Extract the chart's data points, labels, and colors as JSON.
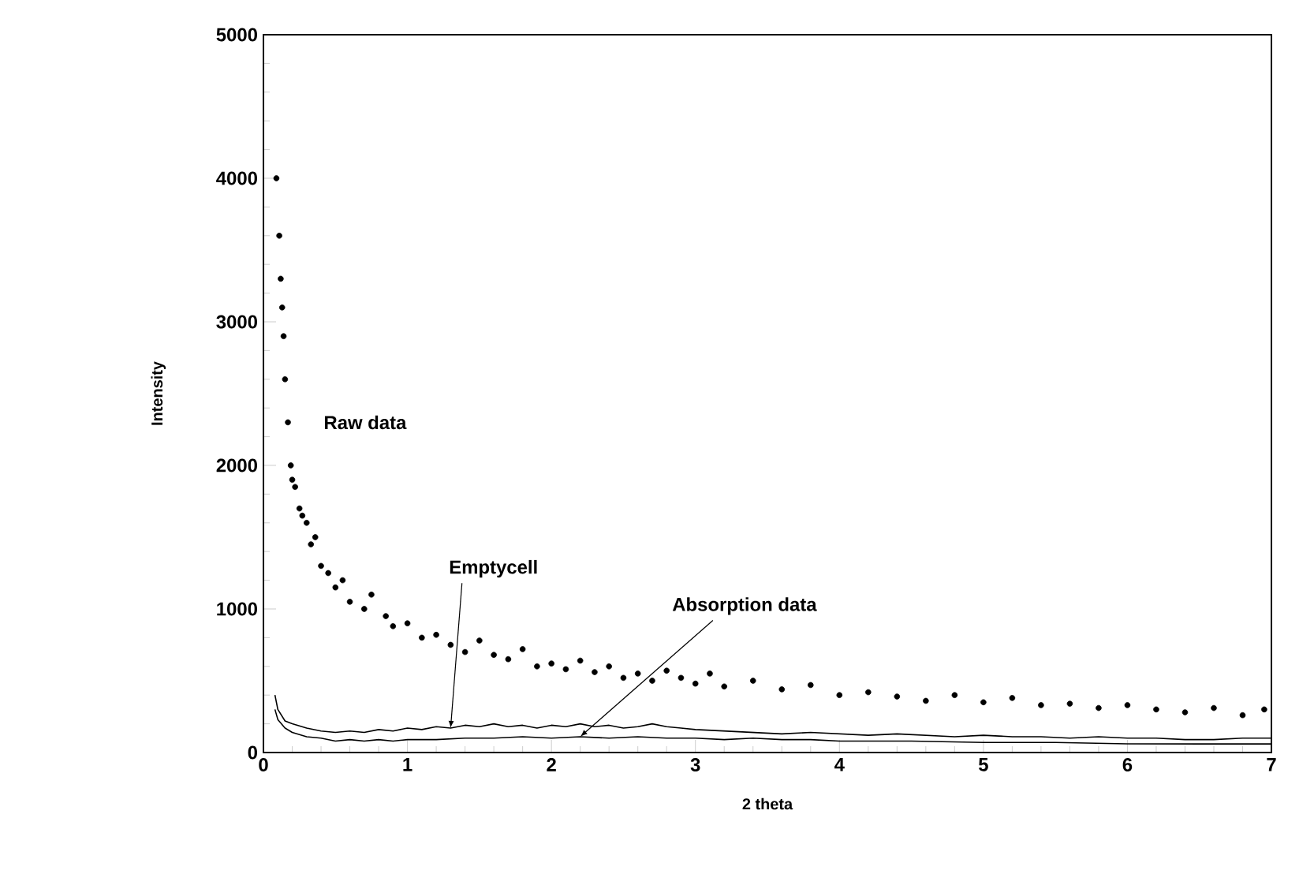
{
  "chart_data": {
    "type": "line",
    "xlabel": "2 theta",
    "ylabel": "Intensity",
    "xlim": [
      0,
      7
    ],
    "ylim": [
      0,
      5000
    ],
    "xticks": [
      0,
      1,
      2,
      3,
      4,
      5,
      6,
      7
    ],
    "yticks": [
      0,
      1000,
      2000,
      3000,
      4000,
      5000
    ],
    "grid": false,
    "legend": false,
    "marker": "circle",
    "series": [
      {
        "name": "Raw data",
        "type": "scatter",
        "color": "#000000",
        "x": [
          0.09,
          0.11,
          0.12,
          0.13,
          0.14,
          0.15,
          0.17,
          0.19,
          0.2,
          0.22,
          0.25,
          0.27,
          0.3,
          0.33,
          0.36,
          0.4,
          0.45,
          0.5,
          0.55,
          0.6,
          0.7,
          0.75,
          0.85,
          0.9,
          1.0,
          1.1,
          1.2,
          1.3,
          1.4,
          1.5,
          1.6,
          1.7,
          1.8,
          1.9,
          2.0,
          2.1,
          2.2,
          2.3,
          2.4,
          2.5,
          2.6,
          2.7,
          2.8,
          2.9,
          3.0,
          3.1,
          3.2,
          3.4,
          3.6,
          3.8,
          4.0,
          4.2,
          4.4,
          4.6,
          4.8,
          5.0,
          5.2,
          5.4,
          5.6,
          5.8,
          6.0,
          6.2,
          6.4,
          6.6,
          6.8,
          6.95
        ],
        "values": [
          4000,
          3600,
          3300,
          3100,
          2900,
          2600,
          2300,
          2000,
          1900,
          1850,
          1700,
          1650,
          1600,
          1450,
          1500,
          1300,
          1250,
          1150,
          1200,
          1050,
          1000,
          1100,
          950,
          880,
          900,
          800,
          820,
          750,
          700,
          780,
          680,
          650,
          720,
          600,
          620,
          580,
          640,
          560,
          600,
          520,
          550,
          500,
          570,
          520,
          480,
          550,
          460,
          500,
          440,
          470,
          400,
          420,
          390,
          360,
          400,
          350,
          380,
          330,
          340,
          310,
          330,
          300,
          280,
          310,
          260,
          300
        ]
      },
      {
        "name": "Emptycell",
        "marker": "none",
        "color": "#000000",
        "x": [
          0.08,
          0.1,
          0.15,
          0.2,
          0.3,
          0.4,
          0.5,
          0.6,
          0.7,
          0.8,
          0.9,
          1.0,
          1.1,
          1.2,
          1.3,
          1.4,
          1.5,
          1.6,
          1.7,
          1.8,
          1.9,
          2.0,
          2.1,
          2.2,
          2.3,
          2.4,
          2.5,
          2.6,
          2.7,
          2.8,
          2.9,
          3.0,
          3.2,
          3.4,
          3.6,
          3.8,
          4.0,
          4.2,
          4.4,
          4.6,
          4.8,
          5.0,
          5.2,
          5.4,
          5.6,
          5.8,
          6.0,
          6.2,
          6.4,
          6.6,
          6.8,
          7.0
        ],
        "values": [
          400,
          300,
          220,
          200,
          170,
          150,
          140,
          150,
          140,
          160,
          150,
          170,
          160,
          180,
          170,
          190,
          180,
          200,
          180,
          190,
          170,
          190,
          180,
          200,
          180,
          190,
          170,
          180,
          200,
          180,
          170,
          160,
          150,
          140,
          130,
          140,
          130,
          120,
          130,
          120,
          110,
          120,
          110,
          110,
          100,
          110,
          100,
          100,
          90,
          90,
          100,
          100
        ]
      },
      {
        "name": "Absorption data",
        "marker": "none",
        "color": "#000000",
        "x": [
          0.08,
          0.1,
          0.15,
          0.2,
          0.3,
          0.4,
          0.5,
          0.6,
          0.7,
          0.8,
          0.9,
          1.0,
          1.2,
          1.4,
          1.6,
          1.8,
          2.0,
          2.2,
          2.4,
          2.6,
          2.8,
          3.0,
          3.2,
          3.4,
          3.6,
          3.8,
          4.0,
          4.5,
          5.0,
          5.5,
          6.0,
          6.5,
          7.0
        ],
        "values": [
          300,
          230,
          170,
          140,
          110,
          100,
          80,
          90,
          80,
          90,
          80,
          90,
          90,
          100,
          100,
          110,
          100,
          110,
          100,
          110,
          100,
          100,
          90,
          100,
          90,
          90,
          80,
          80,
          70,
          70,
          60,
          60,
          60
        ]
      }
    ]
  }
}
